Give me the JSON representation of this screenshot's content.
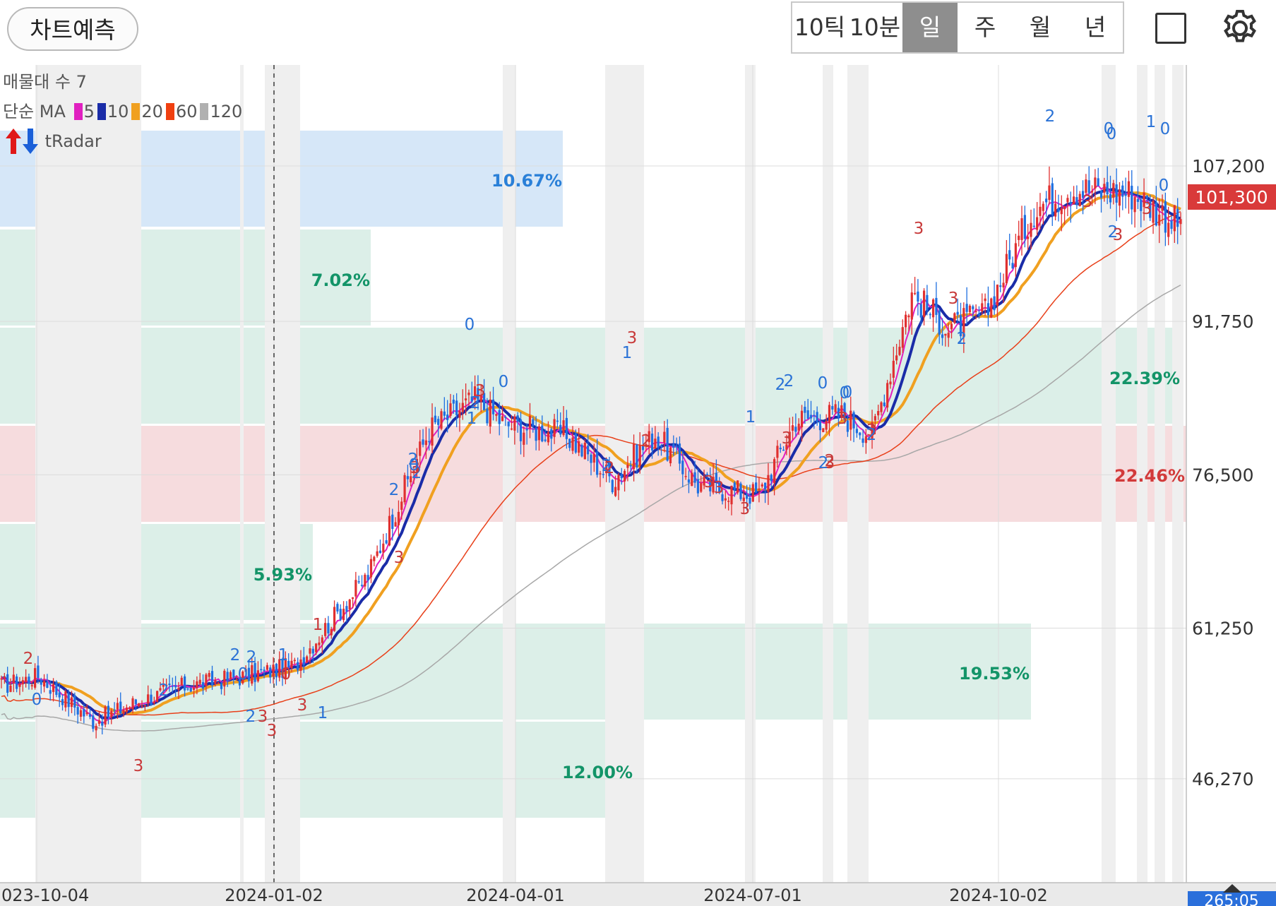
{
  "topbar": {
    "predict_label": "차트예측",
    "period_tabs": [
      "10틱",
      "10분",
      "일",
      "주",
      "월",
      "년"
    ],
    "active_tab": "일",
    "icons": {
      "layout": "square-icon",
      "settings": "gear-icon"
    }
  },
  "legend": {
    "volume_profile": "매물대 수 7",
    "ma_prefix": "단순 MA",
    "ma_items": [
      {
        "label": "5",
        "color": "#e020c0"
      },
      {
        "label": "10",
        "color": "#1a2ca8"
      },
      {
        "label": "20",
        "color": "#f0a020"
      },
      {
        "label": "60",
        "color": "#f04010"
      },
      {
        "label": "120",
        "color": "#b0b0b0"
      }
    ],
    "tradar": "tRadar"
  },
  "chart_data": {
    "type": "candlestick",
    "y_ticks": [
      "107,200",
      "91,750",
      "76,500",
      "61,250",
      "46,270"
    ],
    "x_ticks": [
      "023-10-04",
      "2024-01-02",
      "2024-04-01",
      "2024-07-01",
      "2024-10-02"
    ],
    "current_price": "101,300",
    "crosshair_readout": "265:05",
    "colors": {
      "up": "#e03030",
      "down": "#1e6fe0",
      "current_price_bg": "#d93a3a"
    },
    "volume_profile": [
      {
        "pct": "10.67%",
        "color": "#cfe3f7"
      },
      {
        "pct": "7.02%",
        "color": "#d6ece4"
      },
      {
        "pct": "22.39%",
        "color": "#d6ece4"
      },
      {
        "pct": "22.46%",
        "color": "#f5d6d8"
      },
      {
        "pct": "5.93%",
        "color": "#d6ece4"
      },
      {
        "pct": "19.53%",
        "color": "#d6ece4"
      },
      {
        "pct": "12.00%",
        "color": "#d6ece4"
      }
    ],
    "signal_labels": [
      "2",
      "0",
      "2",
      "3",
      "2",
      "2",
      "1",
      "0",
      "1",
      "0",
      "2",
      "3",
      "3",
      "3",
      "1",
      "3",
      "2",
      "2",
      "3",
      "2",
      "0",
      "0",
      "3",
      "2",
      "1",
      "0",
      "3",
      "2",
      "1",
      "2",
      "2",
      "3",
      "3",
      "3",
      "1",
      "2",
      "2",
      "0",
      "3",
      "2",
      "0",
      "3",
      "3",
      "2",
      "0",
      "3",
      "2",
      "3",
      "3",
      "2",
      "2",
      "0",
      "0",
      "3",
      "3",
      "1",
      "0",
      "0",
      "2",
      "3"
    ]
  }
}
